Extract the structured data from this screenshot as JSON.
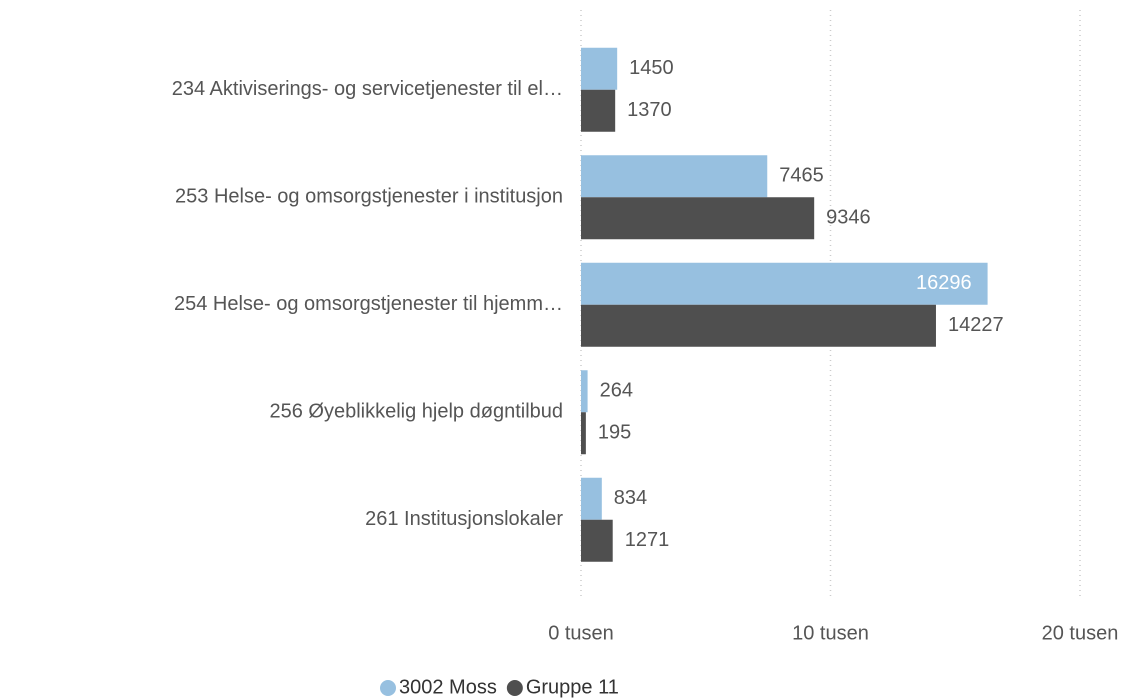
{
  "chart_data": {
    "type": "bar",
    "orientation": "horizontal",
    "categories": [
      "234 Aktiviserings- og servicetjenester til el…",
      "253 Helse- og omsorgstjenester i institusjon",
      "254 Helse- og omsorgstjenester til hjemm…",
      "256 Øyeblikkelig hjelp døgntilbud",
      "261 Institusjonslokaler"
    ],
    "series": [
      {
        "name": "3002 Moss",
        "color": "#97c0e0",
        "values": [
          1450,
          7465,
          16296,
          264,
          834
        ]
      },
      {
        "name": "Gruppe 11",
        "color": "#4f4f4f",
        "values": [
          1370,
          9346,
          14227,
          195,
          1271
        ]
      }
    ],
    "xlim": [
      0,
      20000
    ],
    "xticks": [
      {
        "value": 0,
        "label": "0 tusen"
      },
      {
        "value": 10000,
        "label": "10 tusen"
      },
      {
        "value": 20000,
        "label": "20 tusen"
      }
    ],
    "grid": true,
    "legend": "bottom"
  }
}
